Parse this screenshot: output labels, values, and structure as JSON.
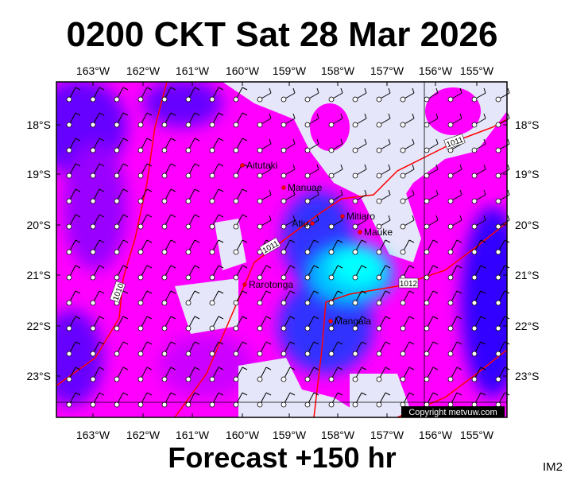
{
  "title": "0200 CKT Sat 28 Mar 2026",
  "footer": "Forecast +150 hr",
  "corner_label": "IM2",
  "copyright": "Copyright metvuw.com",
  "lon_ticks": [
    "163°W",
    "162°W",
    "161°W",
    "160°W",
    "159°W",
    "158°W",
    "157°W",
    "156°W",
    "155°W"
  ],
  "lat_ticks": [
    "18°S",
    "19°S",
    "20°S",
    "21°S",
    "22°S",
    "23°S"
  ],
  "places": [
    {
      "label": "Aitutaki"
    },
    {
      "label": "Manuae"
    },
    {
      "label": "Atiu"
    },
    {
      "label": "Mitiaro"
    },
    {
      "label": "Mauke"
    },
    {
      "label": "Rarotonga"
    },
    {
      "label": "Mangaia"
    }
  ],
  "isobar_labels": [
    "1011",
    "1011",
    "1010",
    "1012"
  ]
}
